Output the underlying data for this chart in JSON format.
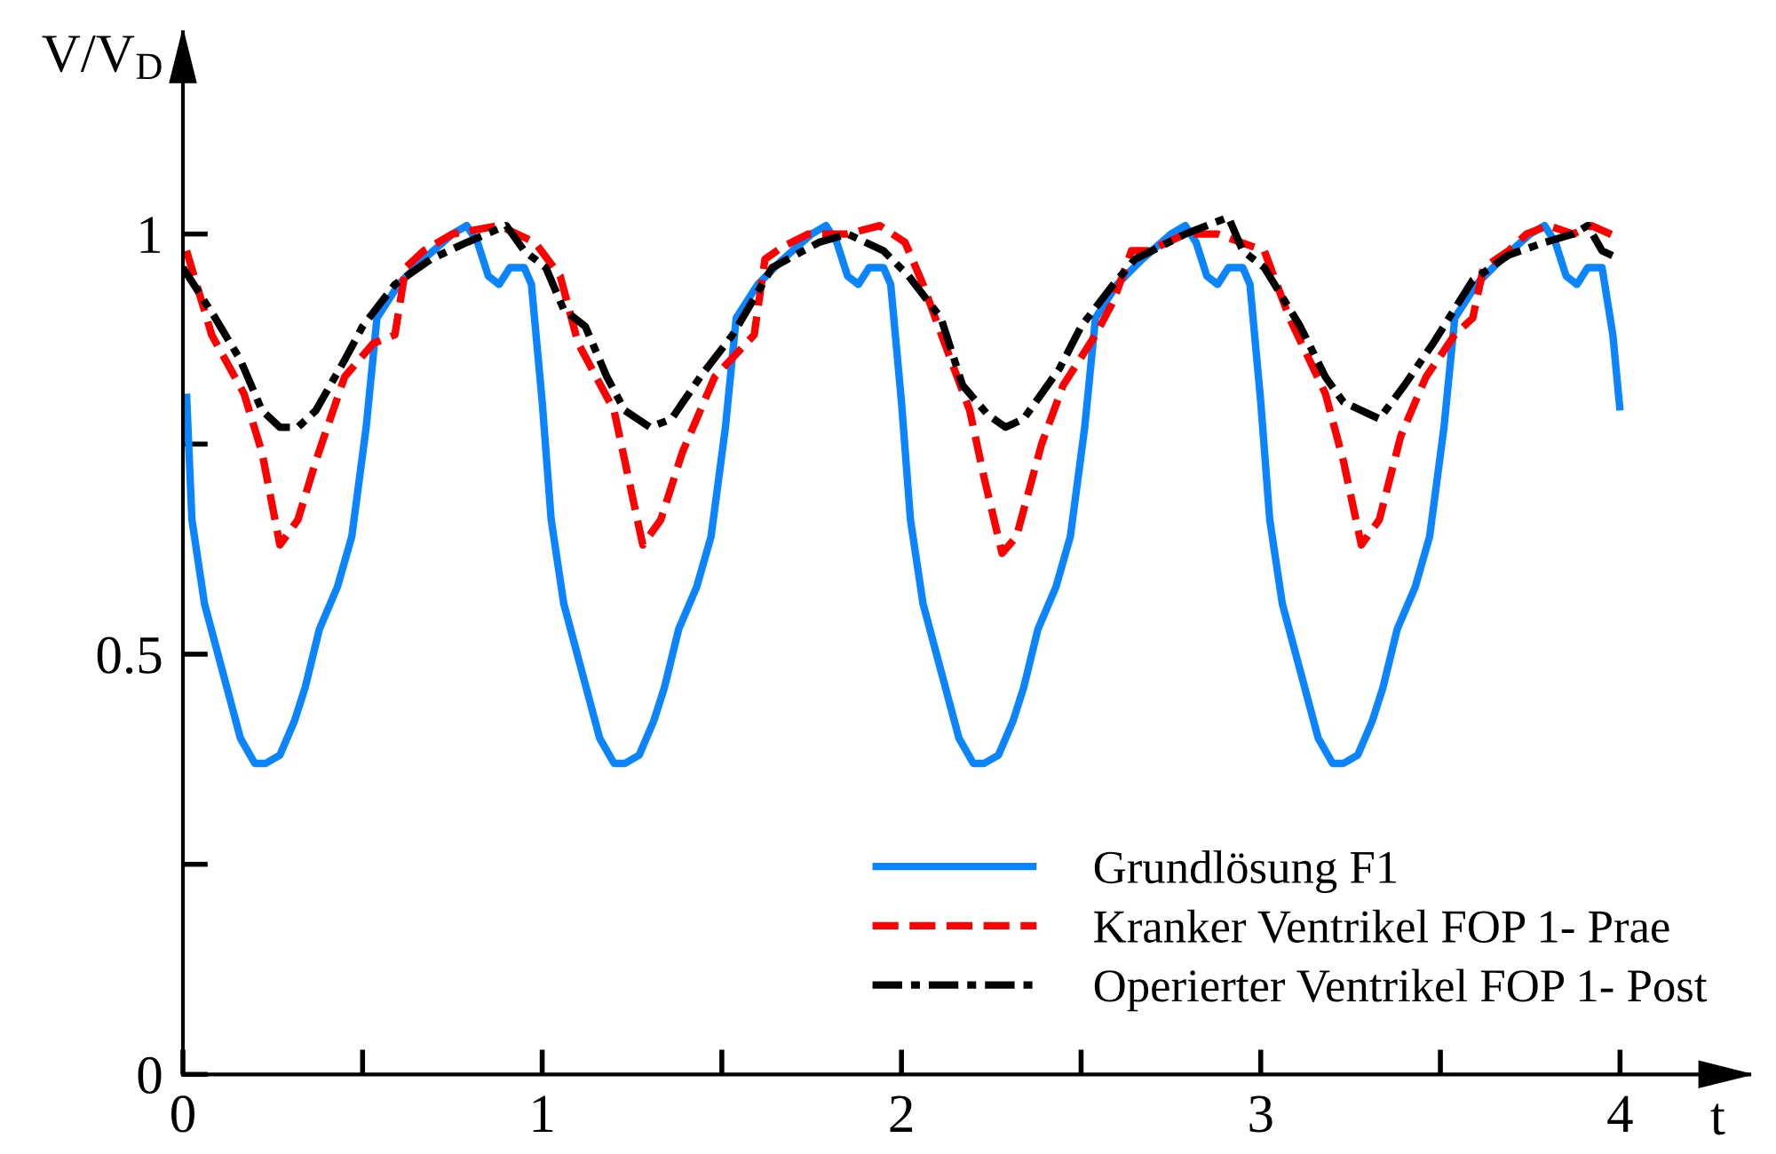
{
  "chart_data": {
    "type": "line",
    "xlabel": "t",
    "ylabel": "V/V$_{D}$",
    "xlim": [
      0,
      4.36
    ],
    "ylim": [
      0,
      1.24
    ],
    "xticks": [
      0,
      {
        "value": 0.5,
        "label": null
      },
      1,
      {
        "value": 1.5,
        "label": null
      },
      2,
      {
        "value": 2.5,
        "label": null
      },
      3,
      {
        "value": 3.5,
        "label": null
      },
      4
    ],
    "yticks": [
      0,
      {
        "value": 0.25,
        "label": null
      },
      0.5,
      {
        "value": 0.75,
        "label": null
      },
      1
    ],
    "grid": false,
    "legend": "bottom right",
    "marker": "none",
    "series": [
      {
        "name": "Grundlösung F1",
        "color": "#0a84ff",
        "line_style": "solid",
        "x": [
          0.01,
          0.025,
          0.06,
          0.11,
          0.16,
          0.2,
          0.23,
          0.27,
          0.31,
          0.34,
          0.38,
          0.43,
          0.47,
          0.51,
          0.54,
          0.6,
          0.67,
          0.75,
          0.79,
          0.82,
          0.85,
          0.88,
          0.91,
          0.95,
          0.97,
          1.0,
          1.025,
          1.06,
          1.11,
          1.16,
          1.2,
          1.23,
          1.27,
          1.31,
          1.34,
          1.38,
          1.43,
          1.47,
          1.51,
          1.54,
          1.6,
          1.67,
          1.75,
          1.79,
          1.82,
          1.85,
          1.88,
          1.91,
          1.95,
          1.97,
          2.0,
          2.025,
          2.06,
          2.11,
          2.16,
          2.2,
          2.23,
          2.27,
          2.31,
          2.34,
          2.38,
          2.43,
          2.47,
          2.51,
          2.54,
          2.6,
          2.67,
          2.75,
          2.79,
          2.82,
          2.85,
          2.88,
          2.91,
          2.95,
          2.97,
          3.0,
          3.025,
          3.06,
          3.11,
          3.16,
          3.2,
          3.23,
          3.27,
          3.31,
          3.34,
          3.38,
          3.43,
          3.47,
          3.51,
          3.54,
          3.6,
          3.67,
          3.75,
          3.79,
          3.82,
          3.85,
          3.88,
          3.91,
          3.95,
          3.98,
          4.0
        ],
        "values": [
          0.81,
          0.66,
          0.56,
          0.48,
          0.4,
          0.37,
          0.37,
          0.38,
          0.42,
          0.46,
          0.53,
          0.58,
          0.64,
          0.77,
          0.9,
          0.94,
          0.97,
          1.0,
          1.01,
          0.99,
          0.95,
          0.94,
          0.96,
          0.96,
          0.94,
          0.8,
          0.66,
          0.56,
          0.48,
          0.4,
          0.37,
          0.37,
          0.38,
          0.42,
          0.46,
          0.53,
          0.58,
          0.64,
          0.77,
          0.9,
          0.94,
          0.97,
          1.0,
          1.01,
          0.99,
          0.95,
          0.94,
          0.96,
          0.96,
          0.94,
          0.8,
          0.66,
          0.56,
          0.48,
          0.4,
          0.37,
          0.37,
          0.38,
          0.42,
          0.46,
          0.53,
          0.58,
          0.64,
          0.77,
          0.9,
          0.94,
          0.97,
          1.0,
          1.01,
          0.99,
          0.95,
          0.94,
          0.96,
          0.96,
          0.94,
          0.8,
          0.66,
          0.56,
          0.48,
          0.4,
          0.37,
          0.37,
          0.38,
          0.42,
          0.46,
          0.53,
          0.58,
          0.64,
          0.77,
          0.9,
          0.94,
          0.97,
          1.0,
          1.01,
          0.99,
          0.95,
          0.94,
          0.96,
          0.96,
          0.88,
          0.79
        ]
      },
      {
        "name": "Kranker Ventrikel FOP 1- Prae",
        "color": "#ff0000",
        "line_style": "dashed",
        "x": [
          0.01,
          0.08,
          0.17,
          0.22,
          0.27,
          0.32,
          0.37,
          0.45,
          0.53,
          0.59,
          0.62,
          0.67,
          0.75,
          0.88,
          0.98,
          1.05,
          1.1,
          1.2,
          1.24,
          1.28,
          1.33,
          1.39,
          1.48,
          1.59,
          1.62,
          1.67,
          1.74,
          1.85,
          1.94,
          2.01,
          2.06,
          2.12,
          2.19,
          2.23,
          2.28,
          2.32,
          2.39,
          2.45,
          2.54,
          2.59,
          2.64,
          2.69,
          2.79,
          2.88,
          3.01,
          3.08,
          3.18,
          3.23,
          3.28,
          3.33,
          3.39,
          3.46,
          3.54,
          3.59,
          3.62,
          3.69,
          3.74,
          3.8,
          3.87,
          3.92,
          4.0
        ],
        "values": [
          0.98,
          0.88,
          0.81,
          0.74,
          0.63,
          0.66,
          0.73,
          0.83,
          0.87,
          0.88,
          0.96,
          0.98,
          1.0,
          1.01,
          0.99,
          0.95,
          0.87,
          0.79,
          0.71,
          0.63,
          0.66,
          0.74,
          0.83,
          0.88,
          0.97,
          0.985,
          1.0,
          1.0,
          1.01,
          0.99,
          0.94,
          0.87,
          0.79,
          0.71,
          0.62,
          0.64,
          0.75,
          0.82,
          0.88,
          0.92,
          0.98,
          0.98,
          1.0,
          1.0,
          0.98,
          0.9,
          0.81,
          0.73,
          0.63,
          0.66,
          0.76,
          0.83,
          0.88,
          0.9,
          0.96,
          0.98,
          1.0,
          1.01,
          1.0,
          1.01,
          0.995
        ]
      },
      {
        "name": "Operierter Ventrikel FOP 1- Post",
        "color": "#000000",
        "line_style": "dashdot",
        "x": [
          0.0,
          0.09,
          0.16,
          0.22,
          0.27,
          0.32,
          0.37,
          0.45,
          0.5,
          0.59,
          0.69,
          0.79,
          0.9,
          0.95,
          1.01,
          1.06,
          1.12,
          1.18,
          1.23,
          1.3,
          1.36,
          1.44,
          1.53,
          1.64,
          1.77,
          1.85,
          1.95,
          2.02,
          2.11,
          2.17,
          2.24,
          2.29,
          2.34,
          2.39,
          2.44,
          2.5,
          2.59,
          2.65,
          2.79,
          2.91,
          2.95,
          3.01,
          3.11,
          3.18,
          3.23,
          3.33,
          3.4,
          3.48,
          3.59,
          3.69,
          3.79,
          3.87,
          3.91,
          3.95,
          4.0
        ],
        "values": [
          0.96,
          0.9,
          0.85,
          0.79,
          0.77,
          0.77,
          0.79,
          0.85,
          0.89,
          0.94,
          0.97,
          0.99,
          1.01,
          0.98,
          0.96,
          0.91,
          0.89,
          0.83,
          0.79,
          0.77,
          0.78,
          0.83,
          0.88,
          0.96,
          0.99,
          1.0,
          0.98,
          0.95,
          0.9,
          0.82,
          0.785,
          0.77,
          0.78,
          0.81,
          0.84,
          0.89,
          0.94,
          0.97,
          1.0,
          1.02,
          0.98,
          0.96,
          0.89,
          0.83,
          0.8,
          0.78,
          0.82,
          0.87,
          0.945,
          0.975,
          0.99,
          1.0,
          1.01,
          0.98,
          0.97
        ]
      }
    ]
  }
}
